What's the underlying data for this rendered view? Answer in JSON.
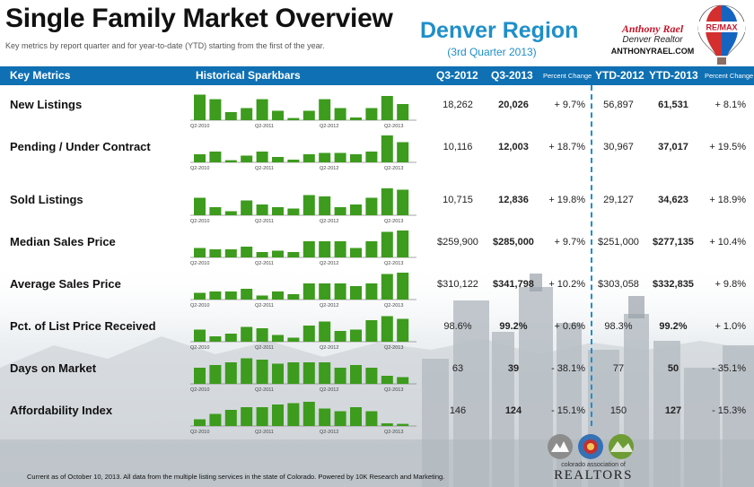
{
  "header": {
    "title": "Single Family Market Overview",
    "subtitle": "Key metrics by report quarter and for year-to-date (YTD) starting from the first of the year.",
    "region": "Denver Region",
    "quarter": "(3rd Quarter 2013)",
    "agent_name": "Anthony Rael",
    "agent_title": "Denver Realtor",
    "agent_url": "ANTHONYRAEL.COM",
    "brand_logo": "RE/MAX"
  },
  "columns": {
    "metric": "Key Metrics",
    "sparkbars": "Historical Sparkbars",
    "q_prev": "Q3-2012",
    "q_curr": "Q3-2013",
    "q_change": "Percent Change",
    "ytd_prev": "YTD-2012",
    "ytd_curr": "YTD-2013",
    "ytd_change": "Percent Change"
  },
  "spark_axis_labels": [
    "Q2-2010",
    "Q2-2011",
    "Q2-2012",
    "Q2-2013"
  ],
  "colors": {
    "header_bar": "#0f70b3",
    "bar_green": "#3d9b1d",
    "accent_blue": "#1e8fc9",
    "brand_red": "#c4162a"
  },
  "rows": [
    {
      "name": "New Listings",
      "q_prev": "18,262",
      "q_curr": "20,026",
      "q_change": "+ 9.7%",
      "ytd_prev": "56,897",
      "ytd_curr": "61,531",
      "ytd_change": "+ 8.1%",
      "bars": [
        0.95,
        0.78,
        0.3,
        0.45,
        0.78,
        0.35,
        0.08,
        0.35,
        0.78,
        0.45,
        0.1,
        0.45,
        0.9,
        0.6
      ]
    },
    {
      "name": "Pending / Under Contract",
      "q_prev": "10,116",
      "q_curr": "12,003",
      "q_change": "+ 18.7%",
      "ytd_prev": "30,967",
      "ytd_curr": "37,017",
      "ytd_change": "+ 19.5%",
      "bars": [
        0.3,
        0.4,
        0.08,
        0.25,
        0.4,
        0.2,
        0.1,
        0.3,
        0.35,
        0.35,
        0.3,
        0.4,
        1.0,
        0.75
      ]
    },
    {
      "name": "Sold Listings",
      "q_prev": "10,715",
      "q_curr": "12,836",
      "q_change": "+ 19.8%",
      "ytd_prev": "29,127",
      "ytd_curr": "34,623",
      "ytd_change": "+ 18.9%",
      "bars": [
        0.65,
        0.3,
        0.15,
        0.55,
        0.4,
        0.3,
        0.25,
        0.75,
        0.7,
        0.3,
        0.4,
        0.65,
        1.0,
        0.95
      ]
    },
    {
      "name": "Median Sales Price",
      "q_prev": "$259,900",
      "q_curr": "$285,000",
      "q_change": "+ 9.7%",
      "ytd_prev": "$251,000",
      "ytd_curr": "$277,135",
      "ytd_change": "+ 10.4%",
      "bars": [
        0.35,
        0.3,
        0.3,
        0.4,
        0.2,
        0.25,
        0.2,
        0.6,
        0.6,
        0.6,
        0.35,
        0.6,
        0.95,
        1.0
      ]
    },
    {
      "name": "Average Sales Price",
      "q_prev": "$310,122",
      "q_curr": "$341,798",
      "q_change": "+ 10.2%",
      "ytd_prev": "$303,058",
      "ytd_curr": "$332,835",
      "ytd_change": "+ 9.8%",
      "bars": [
        0.25,
        0.3,
        0.3,
        0.4,
        0.15,
        0.3,
        0.2,
        0.6,
        0.6,
        0.6,
        0.5,
        0.6,
        0.95,
        1.0
      ]
    },
    {
      "name": "Pct. of List Price Received",
      "q_prev": "98.6%",
      "q_curr": "99.2%",
      "q_change": "+ 0.6%",
      "ytd_prev": "98.3%",
      "ytd_curr": "99.2%",
      "ytd_change": "+ 1.0%",
      "bars": [
        0.45,
        0.2,
        0.3,
        0.55,
        0.5,
        0.25,
        0.15,
        0.6,
        0.75,
        0.4,
        0.45,
        0.8,
        0.95,
        0.85
      ]
    },
    {
      "name": "Days on Market",
      "q_prev": "63",
      "q_curr": "39",
      "q_change": "- 38.1%",
      "ytd_prev": "77",
      "ytd_curr": "50",
      "ytd_change": "- 35.1%",
      "bars": [
        0.6,
        0.7,
        0.8,
        0.95,
        0.9,
        0.75,
        0.8,
        0.8,
        0.8,
        0.6,
        0.7,
        0.6,
        0.3,
        0.25
      ]
    },
    {
      "name": "Affordability Index",
      "q_prev": "146",
      "q_curr": "124",
      "q_change": "- 15.1%",
      "ytd_prev": "150",
      "ytd_curr": "127",
      "ytd_change": "- 15.3%",
      "bars": [
        0.25,
        0.45,
        0.6,
        0.7,
        0.7,
        0.8,
        0.85,
        0.9,
        0.65,
        0.55,
        0.7,
        0.55,
        0.1,
        0.08
      ]
    }
  ],
  "footer": "Current as of October 10, 2013. All data from the multiple listing services in the state of Colorado. Powered by 10K Research and Marketing.",
  "association": {
    "name": "colorado association of",
    "brand": "REALTORS"
  }
}
